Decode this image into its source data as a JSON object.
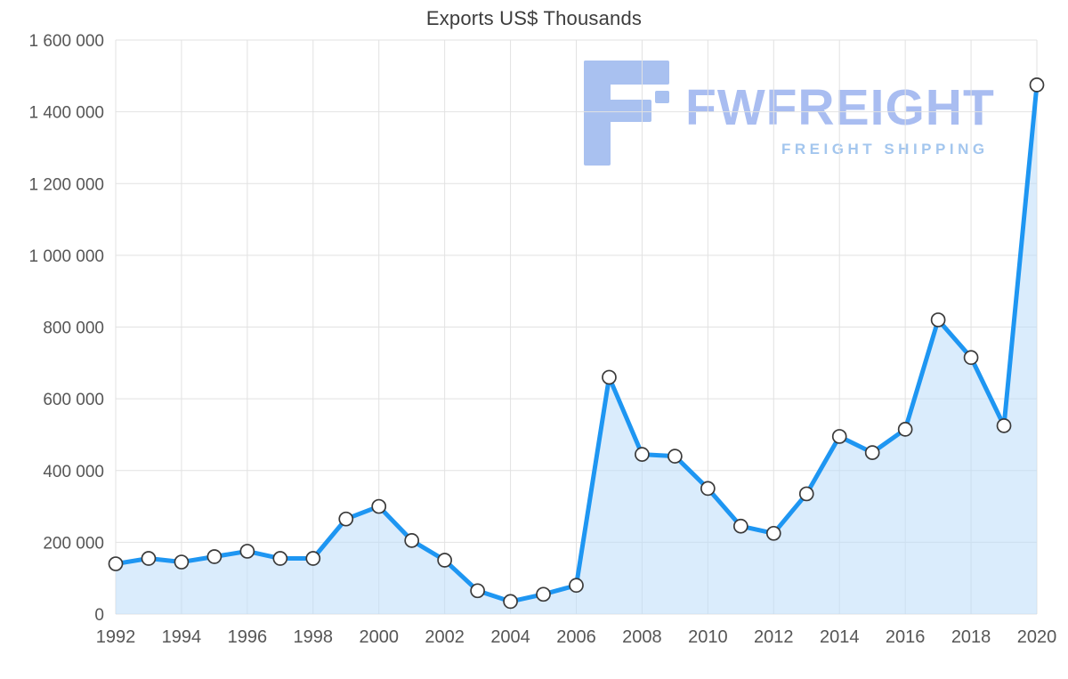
{
  "chart_data": {
    "type": "area",
    "title": "Exports US$ Thousands",
    "x": [
      1992,
      1993,
      1994,
      1995,
      1996,
      1997,
      1998,
      1999,
      2000,
      2001,
      2002,
      2003,
      2004,
      2005,
      2006,
      2007,
      2008,
      2009,
      2010,
      2011,
      2012,
      2013,
      2014,
      2015,
      2016,
      2017,
      2018,
      2019,
      2020
    ],
    "values": [
      140000,
      155000,
      145000,
      160000,
      175000,
      155000,
      155000,
      265000,
      300000,
      205000,
      150000,
      65000,
      35000,
      55000,
      80000,
      660000,
      445000,
      440000,
      350000,
      245000,
      225000,
      335000,
      495000,
      450000,
      515000,
      820000,
      715000,
      525000,
      1475000
    ],
    "x_range": [
      1992,
      2020
    ],
    "ylim": [
      0,
      1600000
    ],
    "grid": "on",
    "legend": "none",
    "x_ticks": [
      {
        "value": 1992,
        "label": "1992"
      },
      {
        "value": 1994,
        "label": "1994"
      },
      {
        "value": 1996,
        "label": "1996"
      },
      {
        "value": 1998,
        "label": "1998"
      },
      {
        "value": 2000,
        "label": "2000"
      },
      {
        "value": 2002,
        "label": "2002"
      },
      {
        "value": 2004,
        "label": "2004"
      },
      {
        "value": 2006,
        "label": "2006"
      },
      {
        "value": 2008,
        "label": "2008"
      },
      {
        "value": 2010,
        "label": "2010"
      },
      {
        "value": 2012,
        "label": "2012"
      },
      {
        "value": 2014,
        "label": "2014"
      },
      {
        "value": 2016,
        "label": "2016"
      },
      {
        "value": 2018,
        "label": "2018"
      },
      {
        "value": 2020,
        "label": "2020"
      }
    ],
    "y_ticks": [
      {
        "value": 0,
        "label": "0"
      },
      {
        "value": 200000,
        "label": "200 000"
      },
      {
        "value": 400000,
        "label": "400 000"
      },
      {
        "value": 600000,
        "label": "600 000"
      },
      {
        "value": 800000,
        "label": "800 000"
      },
      {
        "value": 1000000,
        "label": "1 000 000"
      },
      {
        "value": 1200000,
        "label": "1 200 000"
      },
      {
        "value": 1400000,
        "label": "1 400 000"
      },
      {
        "value": 1600000,
        "label": "1 600 000"
      }
    ]
  },
  "watermark": {
    "brand": "FWFREIGHT",
    "subtitle": "FREIGHT SHIPPING"
  },
  "colors": {
    "line": "#1e96f2",
    "area_fill": "#bcdcf9",
    "marker_stroke": "#3a3a3a",
    "grid": "#e2e2e2",
    "watermark_brand": "#a9bdf1",
    "watermark_subtitle": "#a3c6ee",
    "watermark_logo": "#a9c1f0"
  }
}
